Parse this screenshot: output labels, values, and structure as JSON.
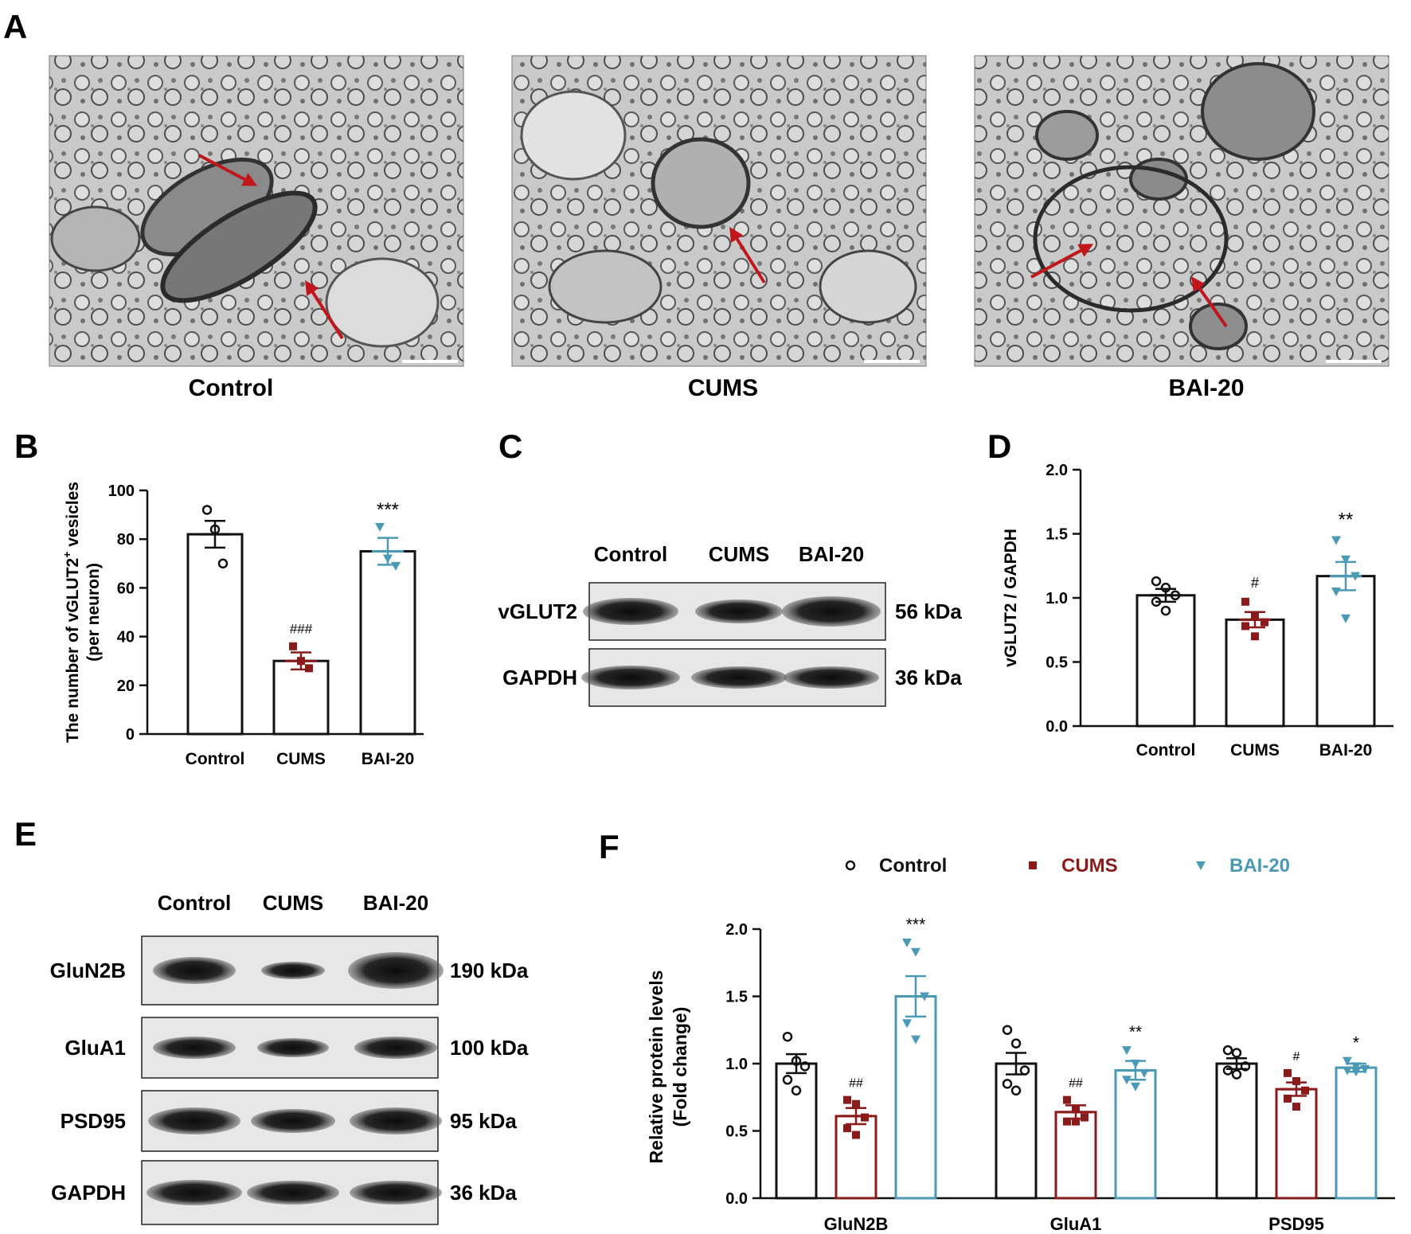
{
  "panel_letters": {
    "A": "A",
    "B": "B",
    "C": "C",
    "D": "D",
    "E": "E",
    "F": "F"
  },
  "colors": {
    "control": "#111111",
    "cums": "#8b1a1a",
    "bai20": "#4a9ab5",
    "arrow": "#c0161c"
  },
  "panelA": {
    "captions": [
      "Control",
      "CUMS",
      "BAI-20"
    ]
  },
  "panelC": {
    "lanes": [
      "Control",
      "CUMS",
      "BAI-20"
    ],
    "rows": [
      {
        "protein": "vGLUT2",
        "size": "56 kDa"
      },
      {
        "protein": "GAPDH",
        "size": "36 kDa"
      }
    ]
  },
  "panelE": {
    "lanes": [
      "Control",
      "CUMS",
      "BAI-20"
    ],
    "rows": [
      {
        "protein": "GluN2B",
        "size": "190 kDa"
      },
      {
        "protein": "GluA1",
        "size": "100 kDa"
      },
      {
        "protein": "PSD95",
        "size": "95 kDa"
      },
      {
        "protein": "GAPDH",
        "size": "36 kDa"
      }
    ]
  },
  "chart_data": [
    {
      "panel": "B",
      "type": "bar",
      "ylabel_main": "The number of vGLUT2",
      "ylabel_sup": "+",
      "ylabel_rest": " vesicles",
      "ylabel_line2": "(per neuron)",
      "categories": [
        "Control",
        "CUMS",
        "BAI-20"
      ],
      "values": [
        82,
        30,
        75
      ],
      "errors": [
        5.5,
        3.5,
        5.5
      ],
      "points": [
        [
          92,
          84,
          70
        ],
        [
          36,
          30,
          27
        ],
        [
          85,
          72,
          69
        ]
      ],
      "ylim": [
        0,
        100
      ],
      "yticks": [
        "0",
        "20",
        "40",
        "60",
        "80",
        "100"
      ],
      "significance": [
        "",
        "###",
        "***"
      ]
    },
    {
      "panel": "D",
      "type": "bar",
      "ylabel": "vGLUT2 / GAPDH",
      "categories": [
        "Control",
        "CUMS",
        "BAI-20"
      ],
      "values": [
        1.02,
        0.83,
        1.17
      ],
      "errors": [
        0.05,
        0.06,
        0.11
      ],
      "points": [
        [
          1.13,
          1.08,
          1.02,
          0.97,
          0.9
        ],
        [
          0.97,
          0.86,
          0.81,
          0.78,
          0.7
        ],
        [
          1.45,
          1.3,
          1.17,
          1.05,
          0.84
        ]
      ],
      "ylim": [
        0,
        2.0
      ],
      "yticks": [
        "0.0",
        "0.5",
        "1.0",
        "1.5",
        "2.0"
      ],
      "significance": [
        "",
        "#",
        "**"
      ]
    },
    {
      "panel": "F",
      "type": "bar",
      "ylabel": "Relative protein  levels",
      "ylabel_line2": "(Fold change)",
      "categories": [
        "GluN2B",
        "GluA1",
        "PSD95"
      ],
      "series": [
        {
          "name": "Control",
          "values": [
            1.0,
            1.0,
            1.0
          ],
          "errors": [
            0.07,
            0.08,
            0.04
          ],
          "points": [
            [
              1.2,
              1.02,
              0.98,
              0.88,
              0.8
            ],
            [
              1.25,
              1.15,
              0.95,
              0.85,
              0.8
            ],
            [
              1.1,
              1.08,
              0.98,
              0.95,
              0.92
            ]
          ]
        },
        {
          "name": "CUMS",
          "values": [
            0.61,
            0.64,
            0.81
          ],
          "errors": [
            0.06,
            0.05,
            0.05
          ],
          "points": [
            [
              0.73,
              0.7,
              0.6,
              0.52,
              0.47
            ],
            [
              0.73,
              0.66,
              0.6,
              0.57,
              0.57
            ],
            [
              0.93,
              0.87,
              0.8,
              0.74,
              0.68
            ]
          ]
        },
        {
          "name": "BAI-20",
          "values": [
            1.5,
            0.95,
            0.97
          ],
          "errors": [
            0.15,
            0.07,
            0.03
          ],
          "points": [
            [
              1.9,
              1.83,
              1.5,
              1.3,
              1.18
            ],
            [
              1.1,
              1.0,
              0.93,
              0.88,
              0.83
            ],
            [
              1.02,
              0.98,
              0.96,
              0.95,
              0.94
            ]
          ]
        }
      ],
      "ylim": [
        0,
        2.0
      ],
      "yticks": [
        "0.0",
        "0.5",
        "1.0",
        "1.5",
        "2.0"
      ],
      "significance": [
        [
          "",
          "##",
          "***"
        ],
        [
          "",
          "##",
          "**"
        ],
        [
          "",
          "#",
          "*"
        ]
      ],
      "legend": "top"
    }
  ]
}
